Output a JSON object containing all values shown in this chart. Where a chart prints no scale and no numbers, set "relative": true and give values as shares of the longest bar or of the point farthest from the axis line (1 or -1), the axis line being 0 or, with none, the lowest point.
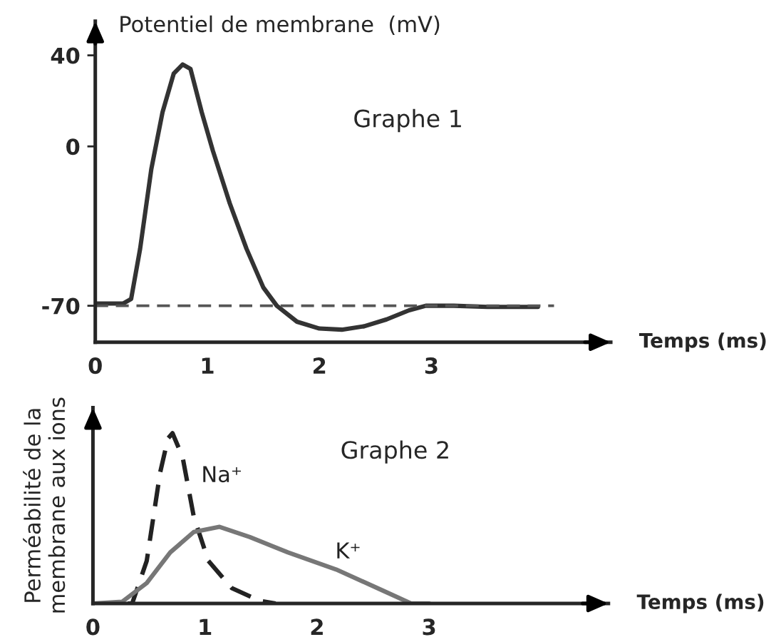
{
  "chart_data": [
    {
      "type": "line",
      "ylabel": "Potentiel de membrane  (mV)",
      "xlabel": "Temps (ms)",
      "annotations": [
        "Graphe 1"
      ],
      "xlim": [
        0,
        4.6
      ],
      "ylim": [
        -86,
        55
      ],
      "xticks": [
        0,
        1,
        2,
        3
      ],
      "yticks": [
        -70,
        0,
        40
      ],
      "grid": false,
      "legend": false,
      "marker": "none",
      "ref_lines": [
        {
          "axis": "y",
          "value": -70,
          "color": "#555555",
          "line_style": "dashed"
        }
      ],
      "series": [
        {
          "color": "#333333",
          "line_style": "solid",
          "x": [
            0,
            0.25,
            0.32,
            0.4,
            0.5,
            0.6,
            0.7,
            0.78,
            0.85,
            0.95,
            1.05,
            1.2,
            1.35,
            1.5,
            1.62,
            1.8,
            2.0,
            2.2,
            2.4,
            2.6,
            2.8,
            2.95,
            3.2,
            3.5,
            3.95
          ],
          "values": [
            -69,
            -69,
            -67,
            -45,
            -10,
            15,
            32,
            36,
            34,
            15,
            -2,
            -25,
            -45,
            -62,
            -70,
            -77,
            -80,
            -80.5,
            -79,
            -76,
            -72,
            -70,
            -70,
            -70.5,
            -70.5
          ]
        }
      ]
    },
    {
      "type": "line",
      "relative": true,
      "ylabel": "Perméabilité de la\nmembrane aux ions",
      "xlabel": "Temps (ms)",
      "annotations": [
        "Graphe 2"
      ],
      "xlim": [
        0,
        4.6
      ],
      "xticks": [
        0,
        1,
        2,
        3
      ],
      "grid": false,
      "legend": false,
      "marker": "none",
      "series": [
        {
          "name": "Na⁺",
          "color": "#222222",
          "line_style": "dashed",
          "x": [
            0,
            0.35,
            0.48,
            0.6,
            0.67,
            0.71,
            0.8,
            0.9,
            1.03,
            1.24,
            1.49,
            1.63
          ],
          "values": [
            0,
            0,
            0.25,
            0.77,
            0.97,
            1.0,
            0.86,
            0.51,
            0.25,
            0.09,
            0.015,
            0
          ]
        },
        {
          "name": "K⁺",
          "color": "#777777",
          "line_style": "solid",
          "x": [
            0,
            0.26,
            0.48,
            0.69,
            0.9,
            1.13,
            1.4,
            1.74,
            2.17,
            2.59,
            2.84,
            3.0
          ],
          "values": [
            0,
            0.01,
            0.12,
            0.3,
            0.42,
            0.45,
            0.39,
            0.3,
            0.2,
            0.075,
            0,
            0
          ]
        }
      ]
    }
  ]
}
